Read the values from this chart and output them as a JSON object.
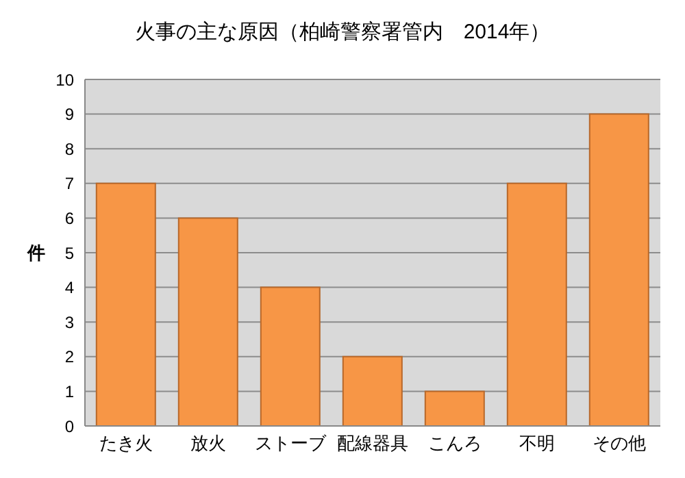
{
  "chart_data": {
    "type": "bar",
    "title": "火事の主な原因（柏崎警察署管内　2014年）",
    "ylabel": "件",
    "categories": [
      "たき火",
      "放火",
      "ストーブ",
      "配線器具",
      "こんろ",
      "不明",
      "その他"
    ],
    "values": [
      7,
      6,
      4,
      2,
      1,
      7,
      9
    ],
    "color": "#f79646",
    "ylim": [
      0,
      10
    ],
    "yticks": [
      0,
      1,
      2,
      3,
      4,
      5,
      6,
      7,
      8,
      9,
      10
    ],
    "grid": "y",
    "legend": false
  }
}
